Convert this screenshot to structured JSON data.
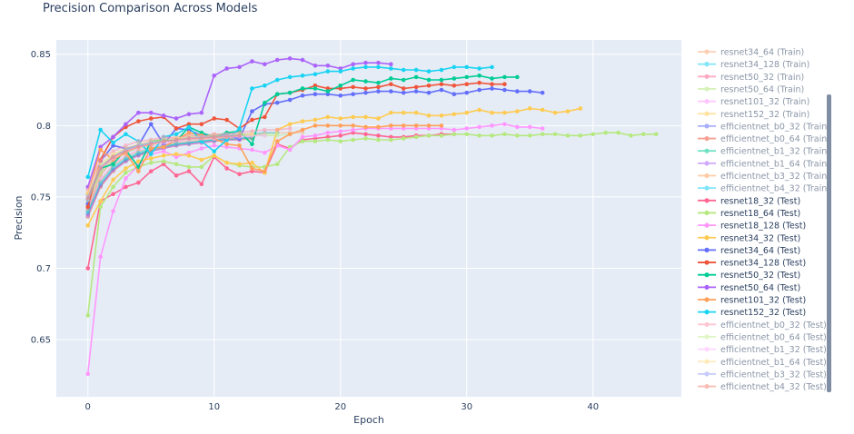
{
  "chart_data": {
    "type": "line",
    "title": "Precision Comparison Across Models",
    "xlabel": "Epoch",
    "ylabel": "Precision",
    "xlim": [
      -2.5,
      47
    ],
    "ylim": [
      0.61,
      0.86
    ],
    "xticks": [
      0,
      10,
      20,
      30,
      40
    ],
    "yticks": [
      0.65,
      0.7,
      0.75,
      0.8,
      0.85
    ],
    "legend_position": "right",
    "series": [
      {
        "name": "resnet34_64 (Train)",
        "color": "#fba979",
        "opacity": 0.45,
        "values": [
          0.752,
          0.77,
          0.779,
          0.783,
          0.786,
          0.789,
          0.791,
          0.792,
          0.793,
          0.793,
          0.794,
          0.794,
          0.794,
          0.794,
          0.795,
          0.795,
          0.795,
          0.795
        ]
      },
      {
        "name": "resnet34_128 (Train)",
        "color": "#19d3f3",
        "opacity": 0.45,
        "values": [
          0.748,
          0.768,
          0.778,
          0.783,
          0.786,
          0.788,
          0.79,
          0.791,
          0.792,
          0.793,
          0.793,
          0.794,
          0.794,
          0.794,
          0.795,
          0.795
        ]
      },
      {
        "name": "resnet50_32 (Train)",
        "color": "#ff6692",
        "opacity": 0.45,
        "values": [
          0.742,
          0.765,
          0.776,
          0.781,
          0.785,
          0.787,
          0.789,
          0.79,
          0.791,
          0.792,
          0.792,
          0.793,
          0.793,
          0.793,
          0.794
        ]
      },
      {
        "name": "resnet50_64 (Train)",
        "color": "#b6e880",
        "opacity": 0.45,
        "values": [
          0.745,
          0.766,
          0.776,
          0.781,
          0.784,
          0.786,
          0.788,
          0.789,
          0.79,
          0.791,
          0.791,
          0.792,
          0.792,
          0.793,
          0.793,
          0.793,
          0.794
        ]
      },
      {
        "name": "resnet101_32 (Train)",
        "color": "#ff97ff",
        "opacity": 0.45,
        "values": [
          0.74,
          0.762,
          0.773,
          0.779,
          0.783,
          0.785,
          0.787,
          0.789,
          0.79,
          0.791,
          0.792,
          0.792,
          0.793,
          0.793
        ]
      },
      {
        "name": "resnet152_32 (Train)",
        "color": "#fecb52",
        "opacity": 0.45,
        "values": [
          0.746,
          0.767,
          0.777,
          0.782,
          0.785,
          0.787,
          0.789,
          0.79,
          0.791,
          0.792,
          0.792,
          0.793,
          0.793,
          0.794
        ]
      },
      {
        "name": "efficientnet_b0_32 (Train)",
        "color": "#636efa",
        "opacity": 0.45,
        "values": [
          0.738,
          0.758,
          0.769,
          0.776,
          0.78,
          0.783,
          0.785,
          0.787,
          0.788,
          0.789,
          0.79,
          0.791,
          0.791,
          0.792
        ]
      },
      {
        "name": "efficientnet_b0_64 (Train)",
        "color": "#ef553b",
        "opacity": 0.45,
        "values": [
          0.736,
          0.757,
          0.768,
          0.775,
          0.779,
          0.782,
          0.784,
          0.786,
          0.787,
          0.788,
          0.789,
          0.79,
          0.79,
          0.791
        ]
      },
      {
        "name": "efficientnet_b1_32 (Train)",
        "color": "#00cc96",
        "opacity": 0.45,
        "values": [
          0.739,
          0.759,
          0.77,
          0.776,
          0.78,
          0.783,
          0.785,
          0.787,
          0.788,
          0.789,
          0.79,
          0.79,
          0.791,
          0.791
        ]
      },
      {
        "name": "efficientnet_b1_64 (Train)",
        "color": "#ab63fa",
        "opacity": 0.45,
        "values": [
          0.737,
          0.758,
          0.769,
          0.775,
          0.779,
          0.782,
          0.784,
          0.786,
          0.787,
          0.788,
          0.789,
          0.79,
          0.79
        ]
      },
      {
        "name": "efficientnet_b3_32 (Train)",
        "color": "#ffa15a",
        "opacity": 0.45,
        "values": [
          0.741,
          0.761,
          0.772,
          0.778,
          0.782,
          0.784,
          0.786,
          0.788,
          0.789,
          0.79,
          0.791,
          0.791,
          0.792
        ]
      },
      {
        "name": "efficientnet_b4_32 (Train)",
        "color": "#19d3f3",
        "opacity": 0.45,
        "values": [
          0.74,
          0.76,
          0.771,
          0.777,
          0.781,
          0.784,
          0.786,
          0.787,
          0.788,
          0.789,
          0.79,
          0.791
        ]
      },
      {
        "name": "resnet18_32 (Test)",
        "color": "#ff6692",
        "opacity": 1,
        "values": [
          0.7,
          0.747,
          0.752,
          0.757,
          0.76,
          0.768,
          0.773,
          0.765,
          0.768,
          0.759,
          0.778,
          0.77,
          0.766,
          0.768,
          0.767,
          0.787,
          0.784,
          0.79,
          0.791,
          0.792,
          0.793,
          0.795,
          0.794,
          0.793,
          0.792,
          0.792,
          0.793,
          0.793,
          0.794,
          0.794
        ]
      },
      {
        "name": "resnet18_64 (Test)",
        "color": "#b6e880",
        "opacity": 1,
        "values": [
          0.667,
          0.743,
          0.757,
          0.767,
          0.771,
          0.774,
          0.775,
          0.773,
          0.771,
          0.771,
          0.779,
          0.774,
          0.772,
          0.771,
          0.771,
          0.773,
          0.785,
          0.789,
          0.789,
          0.79,
          0.789,
          0.79,
          0.791,
          0.79,
          0.79,
          0.791,
          0.792,
          0.793,
          0.793,
          0.794,
          0.794,
          0.793,
          0.793,
          0.794,
          0.793,
          0.793,
          0.794,
          0.794,
          0.793,
          0.793,
          0.794,
          0.795,
          0.795,
          0.793,
          0.794,
          0.794
        ]
      },
      {
        "name": "resnet18_128 (Test)",
        "color": "#ff97ff",
        "opacity": 1,
        "values": [
          0.626,
          0.708,
          0.74,
          0.763,
          0.772,
          0.78,
          0.782,
          0.778,
          0.781,
          0.784,
          0.786,
          0.785,
          0.784,
          0.783,
          0.781,
          0.786,
          0.783,
          0.792,
          0.793,
          0.795,
          0.796,
          0.797,
          0.798,
          0.798,
          0.798,
          0.798,
          0.798,
          0.798,
          0.798,
          0.797,
          0.798,
          0.799,
          0.8,
          0.801,
          0.799,
          0.799,
          0.798
        ]
      },
      {
        "name": "resnet34_32 (Test)",
        "color": "#fecb52",
        "opacity": 1,
        "values": [
          0.73,
          0.747,
          0.762,
          0.77,
          0.775,
          0.777,
          0.779,
          0.78,
          0.779,
          0.776,
          0.779,
          0.774,
          0.773,
          0.774,
          0.767,
          0.797,
          0.801,
          0.803,
          0.804,
          0.806,
          0.805,
          0.806,
          0.806,
          0.805,
          0.809,
          0.809,
          0.809,
          0.807,
          0.807,
          0.808,
          0.809,
          0.811,
          0.809,
          0.809,
          0.81,
          0.812,
          0.811,
          0.809,
          0.81,
          0.812
        ]
      },
      {
        "name": "resnet34_64 (Test)",
        "color": "#636efa",
        "opacity": 1,
        "values": [
          0.745,
          0.775,
          0.786,
          0.784,
          0.786,
          0.801,
          0.787,
          0.798,
          0.797,
          0.793,
          0.793,
          0.793,
          0.791,
          0.81,
          0.815,
          0.816,
          0.818,
          0.821,
          0.822,
          0.822,
          0.821,
          0.822,
          0.823,
          0.824,
          0.824,
          0.823,
          0.824,
          0.823,
          0.825,
          0.822,
          0.823,
          0.825,
          0.826,
          0.825,
          0.824,
          0.824,
          0.823
        ]
      },
      {
        "name": "resnet34_128 (Test)",
        "color": "#ef553b",
        "opacity": 1,
        "values": [
          0.743,
          0.776,
          0.792,
          0.799,
          0.803,
          0.805,
          0.806,
          0.798,
          0.801,
          0.801,
          0.805,
          0.804,
          0.798,
          0.804,
          0.806,
          0.822,
          0.823,
          0.825,
          0.828,
          0.826,
          0.826,
          0.827,
          0.826,
          0.827,
          0.829,
          0.826,
          0.827,
          0.828,
          0.829,
          0.828,
          0.829,
          0.83,
          0.829,
          0.829
        ]
      },
      {
        "name": "resnet50_32 (Test)",
        "color": "#00cc96",
        "opacity": 1,
        "values": [
          0.748,
          0.77,
          0.773,
          0.783,
          0.771,
          0.789,
          0.79,
          0.789,
          0.799,
          0.795,
          0.792,
          0.795,
          0.796,
          0.787,
          0.816,
          0.822,
          0.823,
          0.826,
          0.826,
          0.824,
          0.828,
          0.832,
          0.831,
          0.83,
          0.833,
          0.832,
          0.834,
          0.832,
          0.832,
          0.833,
          0.834,
          0.835,
          0.833,
          0.834,
          0.834
        ]
      },
      {
        "name": "resnet50_64 (Test)",
        "color": "#ab63fa",
        "opacity": 1,
        "values": [
          0.757,
          0.785,
          0.792,
          0.801,
          0.809,
          0.809,
          0.807,
          0.805,
          0.808,
          0.809,
          0.835,
          0.84,
          0.841,
          0.845,
          0.843,
          0.846,
          0.847,
          0.846,
          0.842,
          0.842,
          0.84,
          0.843,
          0.844,
          0.844,
          0.843
        ]
      },
      {
        "name": "resnet101_32 (Test)",
        "color": "#ffa15a",
        "opacity": 1,
        "values": [
          0.752,
          0.783,
          0.776,
          0.781,
          0.768,
          0.784,
          0.785,
          0.79,
          0.795,
          0.793,
          0.791,
          0.787,
          0.786,
          0.77,
          0.768,
          0.789,
          0.794,
          0.797,
          0.8,
          0.8,
          0.8,
          0.8,
          0.799,
          0.799,
          0.8,
          0.8,
          0.8,
          0.8,
          0.8
        ]
      },
      {
        "name": "resnet152_32 (Test)",
        "color": "#19d3f3",
        "opacity": 1,
        "values": [
          0.764,
          0.797,
          0.788,
          0.794,
          0.789,
          0.78,
          0.792,
          0.794,
          0.799,
          0.789,
          0.782,
          0.79,
          0.798,
          0.826,
          0.828,
          0.832,
          0.834,
          0.835,
          0.836,
          0.838,
          0.838,
          0.84,
          0.841,
          0.841,
          0.84,
          0.839,
          0.839,
          0.838,
          0.839,
          0.841,
          0.841,
          0.84,
          0.841
        ]
      },
      {
        "name": "efficientnet_b0_32 (Test)",
        "color": "#ff97ae",
        "opacity": 0.6,
        "values": [
          0.755,
          0.776,
          0.782,
          0.786,
          0.789,
          0.79,
          0.792,
          0.791,
          0.793,
          0.792,
          0.794,
          0.794,
          0.795,
          0.796,
          0.797,
          0.797,
          0.798
        ]
      },
      {
        "name": "efficientnet_b0_64 (Test)",
        "color": "#c7ef9a",
        "opacity": 0.6,
        "values": [
          0.751,
          0.772,
          0.779,
          0.783,
          0.786,
          0.788,
          0.789,
          0.79,
          0.79,
          0.791,
          0.792,
          0.792,
          0.793,
          0.793,
          0.794,
          0.794
        ]
      },
      {
        "name": "efficientnet_b1_32 (Test)",
        "color": "#ffb5ff",
        "opacity": 0.6,
        "values": [
          0.748,
          0.77,
          0.777,
          0.782,
          0.785,
          0.787,
          0.788,
          0.789,
          0.79,
          0.791,
          0.791,
          0.792,
          0.792,
          0.793,
          0.793
        ]
      },
      {
        "name": "efficientnet_b1_64 (Test)",
        "color": "#fedc87",
        "opacity": 0.6,
        "values": [
          0.753,
          0.773,
          0.78,
          0.784,
          0.787,
          0.789,
          0.79,
          0.791,
          0.792,
          0.792,
          0.793,
          0.793,
          0.794,
          0.794
        ]
      },
      {
        "name": "efficientnet_b3_32 (Test)",
        "color": "#9aa1fc",
        "opacity": 0.6,
        "values": [
          0.75,
          0.771,
          0.778,
          0.783,
          0.786,
          0.788,
          0.789,
          0.79,
          0.791,
          0.792,
          0.792,
          0.793,
          0.793
        ]
      },
      {
        "name": "efficientnet_b4_32 (Test)",
        "color": "#f4887a",
        "opacity": 0.6,
        "values": [
          0.749,
          0.77,
          0.778,
          0.782,
          0.785,
          0.787,
          0.789,
          0.79,
          0.791,
          0.791,
          0.792,
          0.792,
          0.793
        ]
      }
    ]
  }
}
